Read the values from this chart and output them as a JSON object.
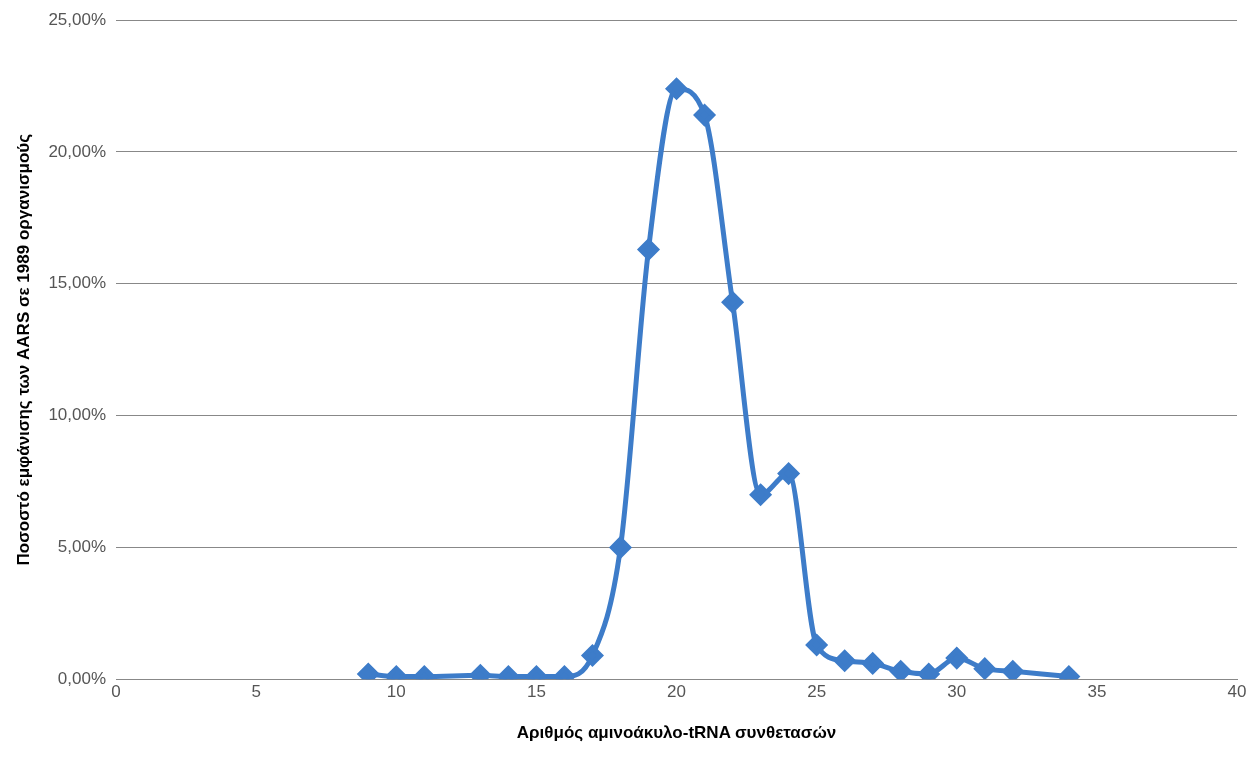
{
  "chart_data": {
    "type": "line",
    "xlabel": "Αριθμός αμινοάκυλο-tRNA συνθετασών",
    "ylabel": "Ποσοστό εμφάνισης των AARS σε 1989 οργανισμούς",
    "x": [
      9,
      10,
      11,
      13,
      14,
      15,
      16,
      17,
      18,
      19,
      20,
      21,
      22,
      23,
      24,
      25,
      26,
      27,
      28,
      29,
      30,
      31,
      32,
      34
    ],
    "series": [
      {
        "color": "#3d7cc9",
        "values": [
          0.2,
          0.1,
          0.1,
          0.15,
          0.1,
          0.1,
          0.1,
          0.9,
          5.0,
          16.3,
          22.4,
          21.4,
          14.3,
          7.0,
          7.8,
          1.3,
          0.7,
          0.6,
          0.3,
          0.2,
          0.8,
          0.4,
          0.3,
          0.1
        ]
      }
    ],
    "xlim": [
      0,
      40
    ],
    "xticks": [
      0,
      5,
      10,
      15,
      20,
      25,
      30,
      35,
      40
    ],
    "ylim": [
      0,
      25
    ],
    "yticks": [
      {
        "value": 0,
        "label": "0,00%"
      },
      {
        "value": 5,
        "label": "5,00%"
      },
      {
        "value": 10,
        "label": "10,00%"
      },
      {
        "value": 15,
        "label": "15,00%"
      },
      {
        "value": 20,
        "label": "20,00%"
      },
      {
        "value": 25,
        "label": "25,00%"
      }
    ],
    "grid": "y",
    "legend": false,
    "marker": "diamond",
    "line_style": "solid"
  }
}
